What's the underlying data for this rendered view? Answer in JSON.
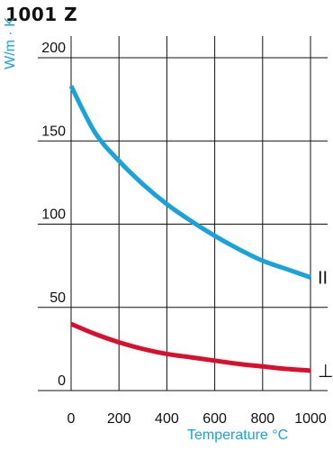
{
  "title": "1001 Z",
  "chart_data": {
    "type": "line",
    "title": "1001 Z",
    "xlabel": "Temperature °C",
    "ylabel": "W/m · K",
    "xlim": [
      0,
      1000
    ],
    "ylim": [
      0,
      200
    ],
    "xticks": [
      "0",
      "200",
      "400",
      "600",
      "800",
      "1000"
    ],
    "yticks": [
      "0",
      "50",
      "100",
      "150",
      "200"
    ],
    "grid": true,
    "series": [
      {
        "name": "II",
        "color": "#1aa3d9",
        "x": [
          0,
          100,
          200,
          300,
          400,
          500,
          600,
          700,
          800,
          900,
          1000
        ],
        "y": [
          183,
          155,
          138,
          124,
          112,
          102,
          93,
          85,
          78,
          73,
          68
        ]
      },
      {
        "name": "⊥",
        "color": "#d8102e",
        "x": [
          0,
          100,
          200,
          300,
          400,
          500,
          600,
          700,
          800,
          900,
          1000
        ],
        "y": [
          40,
          34,
          29,
          25,
          22,
          20,
          18,
          16,
          14.5,
          13,
          12
        ]
      }
    ]
  },
  "colors": {
    "axis_label": "#1aa3d9",
    "grid": "#111111"
  }
}
